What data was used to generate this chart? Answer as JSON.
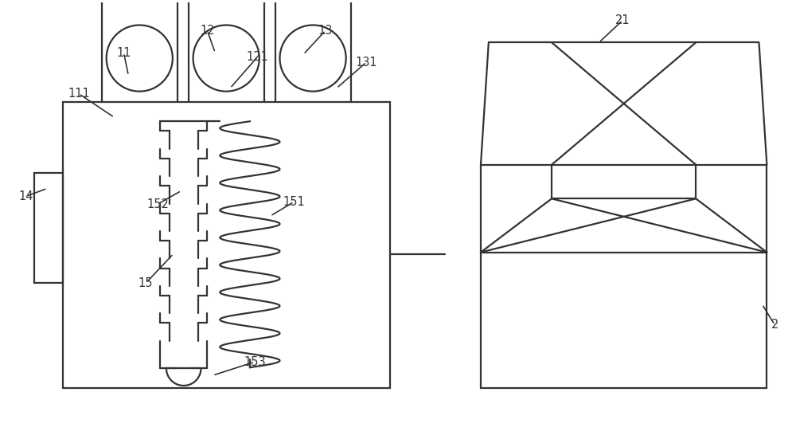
{
  "bg_color": "#ffffff",
  "lc": "#333333",
  "lw": 1.6,
  "fig_w": 10.0,
  "fig_h": 5.61,
  "dpi": 100
}
